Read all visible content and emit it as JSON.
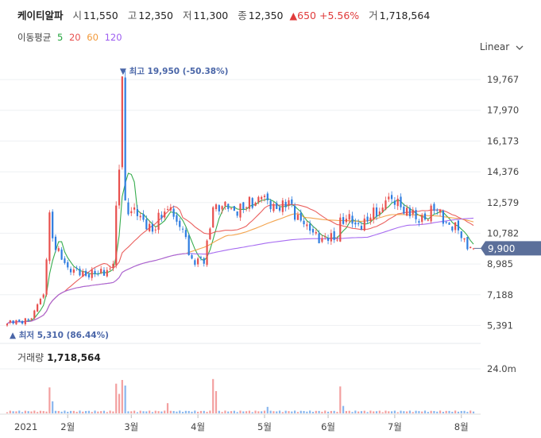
{
  "stock": {
    "name": "케이티알파",
    "open_label": "시",
    "open": "11,550",
    "high_label": "고",
    "high": "12,350",
    "low_label": "저",
    "low": "11,300",
    "close_label": "종",
    "close": "12,350",
    "change": "▲650",
    "change_pct": "+5.56%",
    "volume_label": "거",
    "volume": "1,718,564"
  },
  "ma_legend": {
    "title": "이동평균",
    "items": [
      {
        "label": "5",
        "color": "#22a43c"
      },
      {
        "label": "20",
        "color": "#e8504e"
      },
      {
        "label": "60",
        "color": "#f29a3b"
      },
      {
        "label": "120",
        "color": "#9d5cf0"
      }
    ]
  },
  "scale_selector": {
    "label": "Linear",
    "icon": "chevron-down-icon"
  },
  "volume_legend": {
    "label": "거래량",
    "value": "1,718,564"
  },
  "colors": {
    "up": "#e8504e",
    "down": "#2e7de0",
    "price_tag": "#5b6f9a",
    "grid": "#eef0f3"
  },
  "chart_data": {
    "type": "candlestick",
    "x_tick_labels": [
      "2021",
      "2월",
      "3월",
      "4월",
      "5월",
      "6월",
      "7월",
      "8월"
    ],
    "x_tick_dates": [
      "2021-01-04",
      "2021-02-01",
      "2021-03-02",
      "2021-04-01",
      "2021-05-03",
      "2021-06-01",
      "2021-07-01",
      "2021-08-02"
    ],
    "y_tick_labels": [
      "19,767",
      "17,970",
      "16,173",
      "14,376",
      "12,579",
      "10,782",
      "8,985",
      "7,188",
      "5,391"
    ],
    "y_ticks": [
      19767,
      17970,
      16173,
      14376,
      12579,
      10782,
      8985,
      7188,
      5391
    ],
    "ylim": [
      4900,
      20700
    ],
    "last_price": 9900,
    "last_price_label": "9,900",
    "high_marker": {
      "label": "▼ 최고 19,950 (-50.38%)",
      "value": 19950
    },
    "low_marker": {
      "label": "▲ 최저 5,310 (86.44%)",
      "value": 5310
    },
    "volume_axis": {
      "label": "24.0m",
      "value": 24000000
    },
    "price_anchors": [
      {
        "date": "2021-01-04",
        "price": 5500
      },
      {
        "date": "2021-01-14",
        "price": 5800
      },
      {
        "date": "2021-01-20",
        "price": 7200
      },
      {
        "date": "2021-01-22",
        "price": 12000
      },
      {
        "date": "2021-01-26",
        "price": 9800
      },
      {
        "date": "2021-02-02",
        "price": 8500
      },
      {
        "date": "2021-02-15",
        "price": 8400
      },
      {
        "date": "2021-02-22",
        "price": 9000
      },
      {
        "date": "2021-02-23",
        "price": 12400
      },
      {
        "date": "2021-02-24",
        "price": 14500
      },
      {
        "date": "2021-02-25",
        "price": 19950
      },
      {
        "date": "2021-02-26",
        "price": 12700
      },
      {
        "date": "2021-03-05",
        "price": 11800
      },
      {
        "date": "2021-03-12",
        "price": 11000
      },
      {
        "date": "2021-03-19",
        "price": 12300
      },
      {
        "date": "2021-03-25",
        "price": 11000
      },
      {
        "date": "2021-03-30",
        "price": 9300
      },
      {
        "date": "2021-04-05",
        "price": 9000
      },
      {
        "date": "2021-04-08",
        "price": 12300
      },
      {
        "date": "2021-04-15",
        "price": 12200
      },
      {
        "date": "2021-04-22",
        "price": 12200
      },
      {
        "date": "2021-04-30",
        "price": 12900
      },
      {
        "date": "2021-05-07",
        "price": 12200
      },
      {
        "date": "2021-05-14",
        "price": 12500
      },
      {
        "date": "2021-05-21",
        "price": 11300
      },
      {
        "date": "2021-05-28",
        "price": 10500
      },
      {
        "date": "2021-06-04",
        "price": 10400
      },
      {
        "date": "2021-06-07",
        "price": 11700
      },
      {
        "date": "2021-06-14",
        "price": 11300
      },
      {
        "date": "2021-06-21",
        "price": 11700
      },
      {
        "date": "2021-06-28",
        "price": 12700
      },
      {
        "date": "2021-07-05",
        "price": 12300
      },
      {
        "date": "2021-07-12",
        "price": 11600
      },
      {
        "date": "2021-07-20",
        "price": 12100
      },
      {
        "date": "2021-07-26",
        "price": 11400
      },
      {
        "date": "2021-08-02",
        "price": 10500
      },
      {
        "date": "2021-08-06",
        "price": 9900
      }
    ],
    "volume_spikes": [
      {
        "date": "2021-01-22",
        "volume": 14000000
      },
      {
        "date": "2021-01-25",
        "volume": 6500000
      },
      {
        "date": "2021-02-23",
        "volume": 16000000
      },
      {
        "date": "2021-02-24",
        "volume": 10500000
      },
      {
        "date": "2021-02-25",
        "volume": 18000000
      },
      {
        "date": "2021-02-26",
        "volume": 15000000
      },
      {
        "date": "2021-03-18",
        "volume": 5500000
      },
      {
        "date": "2021-04-08",
        "volume": 18500000
      },
      {
        "date": "2021-04-09",
        "volume": 12000000
      },
      {
        "date": "2021-05-04",
        "volume": 3500000
      },
      {
        "date": "2021-06-07",
        "volume": 14500000
      },
      {
        "date": "2021-06-08",
        "volume": 4000000
      }
    ]
  }
}
